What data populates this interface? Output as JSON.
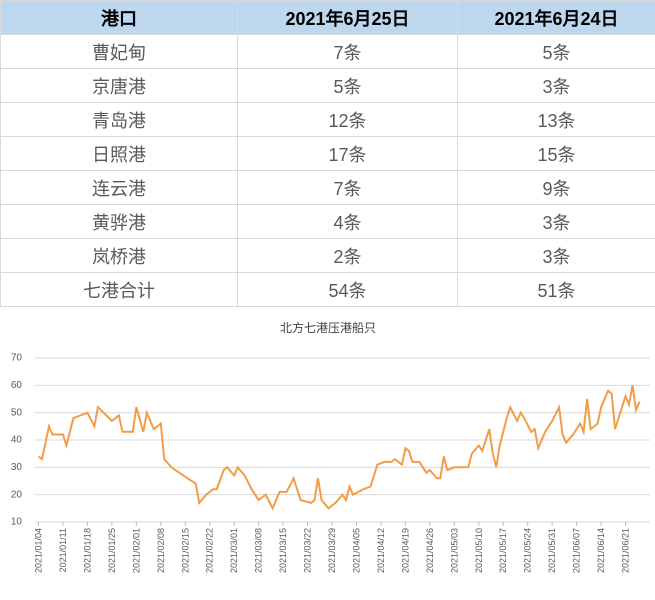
{
  "table": {
    "header": [
      "港口",
      "2021年6月25日",
      "2021年6月24日"
    ],
    "rows": [
      [
        "曹妃甸",
        "7条",
        "5条"
      ],
      [
        "京唐港",
        "5条",
        "3条"
      ],
      [
        "青岛港",
        "12条",
        "13条"
      ],
      [
        "日照港",
        "17条",
        "15条"
      ],
      [
        "连云港",
        "7条",
        "9条"
      ],
      [
        "黄骅港",
        "4条",
        "3条"
      ],
      [
        "岚桥港",
        "2条",
        "3条"
      ],
      [
        "七港合计",
        "54条",
        "51条"
      ]
    ]
  },
  "chart_data": {
    "type": "line",
    "title": "北方七港压港船只",
    "color": "#f39c47",
    "grid": true,
    "x": [
      "2021/01/04",
      "2021/01/05",
      "2021/01/07",
      "2021/01/08",
      "2021/01/11",
      "2021/01/12",
      "2021/01/14",
      "2021/01/18",
      "2021/01/20",
      "2021/01/21",
      "2021/01/25",
      "2021/01/27",
      "2021/01/28",
      "2021/01/31",
      "2021/02/01",
      "2021/02/03",
      "2021/02/04",
      "2021/02/06",
      "2021/02/08",
      "2021/02/09",
      "2021/02/11",
      "2021/02/18",
      "2021/02/19",
      "2021/02/21",
      "2021/02/23",
      "2021/02/24",
      "2021/02/26",
      "2021/02/27",
      "2021/03/01",
      "2021/03/02",
      "2021/03/04",
      "2021/03/06",
      "2021/03/08",
      "2021/03/10",
      "2021/03/12",
      "2021/03/14",
      "2021/03/16",
      "2021/03/18",
      "2021/03/20",
      "2021/03/23",
      "2021/03/24",
      "2021/03/25",
      "2021/03/26",
      "2021/03/28",
      "2021/03/30",
      "2021/04/01",
      "2021/04/02",
      "2021/04/03",
      "2021/04/04",
      "2021/04/07",
      "2021/04/09",
      "2021/04/11",
      "2021/04/13",
      "2021/04/15",
      "2021/04/16",
      "2021/04/18",
      "2021/04/19",
      "2021/04/20",
      "2021/04/21",
      "2021/04/23",
      "2021/04/25",
      "2021/04/26",
      "2021/04/28",
      "2021/04/29",
      "2021/04/30",
      "2021/05/01",
      "2021/05/03",
      "2021/05/07",
      "2021/05/08",
      "2021/05/10",
      "2021/05/11",
      "2021/05/13",
      "2021/05/14",
      "2021/05/15",
      "2021/05/16",
      "2021/05/18",
      "2021/05/19",
      "2021/05/21",
      "2021/05/22",
      "2021/05/23",
      "2021/05/25",
      "2021/05/26",
      "2021/05/27",
      "2021/05/29",
      "2021/05/31",
      "2021/06/02",
      "2021/06/03",
      "2021/06/04",
      "2021/06/06",
      "2021/06/08",
      "2021/06/09",
      "2021/06/10",
      "2021/06/11",
      "2021/06/13",
      "2021/06/14",
      "2021/06/16",
      "2021/06/17",
      "2021/06/18",
      "2021/06/20",
      "2021/06/21",
      "2021/06/22",
      "2021/06/23",
      "2021/06/24",
      "2021/06/25"
    ],
    "values": [
      34,
      33,
      45,
      42,
      42,
      38,
      48,
      50,
      45,
      52,
      47,
      49,
      43,
      43,
      52,
      43,
      50,
      44,
      46,
      33,
      30,
      24,
      17,
      20,
      22,
      22,
      29,
      30,
      27,
      30,
      27,
      22,
      18,
      20,
      15,
      21,
      21,
      26,
      18,
      17,
      18,
      26,
      18,
      15,
      17,
      20,
      18,
      23,
      20,
      22,
      23,
      31,
      32,
      32,
      33,
      31,
      37,
      36,
      32,
      32,
      28,
      29,
      26,
      26,
      34,
      29,
      30,
      30,
      35,
      38,
      36,
      44,
      35,
      30,
      38,
      48,
      52,
      47,
      50,
      48,
      43,
      44,
      37,
      43,
      47,
      52,
      42,
      39,
      42,
      46,
      43,
      55,
      44,
      46,
      52,
      58,
      57,
      44,
      52,
      56,
      53,
      60,
      51,
      54
    ],
    "xlim": [
      "2021/01/03",
      "2021/06/28"
    ],
    "xticks": [
      "2021/01/04",
      "2021/01/11",
      "2021/01/18",
      "2021/01/25",
      "2021/02/01",
      "2021/02/08",
      "2021/02/15",
      "2021/02/22",
      "2021/03/01",
      "2021/03/08",
      "2021/03/15",
      "2021/03/22",
      "2021/03/29",
      "2021/04/05",
      "2021/04/12",
      "2021/04/19",
      "2021/04/26",
      "2021/05/03",
      "2021/05/10",
      "2021/05/17",
      "2021/05/24",
      "2021/05/31",
      "2021/06/07",
      "2021/06/14",
      "2021/06/21"
    ],
    "ylim": [
      10,
      70
    ],
    "yticks": [
      10,
      20,
      30,
      40,
      50,
      60,
      70
    ]
  }
}
